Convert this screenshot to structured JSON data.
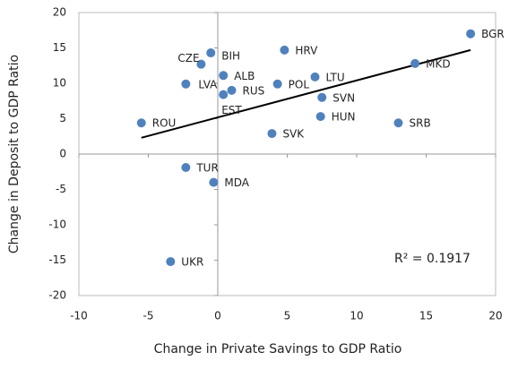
{
  "chart_data": {
    "type": "scatter",
    "xlabel": "Change in Private Savings to GDP Ratio",
    "ylabel": "Change in Deposit to GDP Ratio",
    "annotation": "R² = 0.1917",
    "color": "#4f81bd",
    "labels": [
      "BGR",
      "MKD",
      "HRV",
      "BIH",
      "CZE",
      "ALB",
      "LTU",
      "LVA",
      "POL",
      "RUS",
      "EST",
      "SVN",
      "HUN",
      "SRB",
      "ROU",
      "SVK",
      "TUR",
      "MDA",
      "UKR"
    ],
    "x": [
      18.2,
      14.2,
      4.8,
      -0.5,
      -1.2,
      0.4,
      7.0,
      -2.3,
      4.3,
      1.0,
      0.4,
      7.5,
      7.4,
      13.0,
      -5.5,
      3.9,
      -2.3,
      -0.3,
      -3.4
    ],
    "y": [
      17.0,
      12.8,
      14.7,
      14.3,
      12.7,
      11.1,
      10.9,
      9.9,
      9.9,
      9.0,
      8.4,
      8.0,
      5.3,
      4.4,
      4.4,
      2.9,
      -1.9,
      -4.0,
      -15.2
    ],
    "trendline": {
      "x": [
        -5.5,
        18.2
      ],
      "y": [
        2.3,
        14.7
      ],
      "color": "#000000"
    },
    "xlim": [
      -10,
      20
    ],
    "ylim": [
      -20,
      20
    ],
    "xticks": [
      -10,
      -5,
      0,
      5,
      10,
      15,
      20
    ],
    "yticks": [
      -20,
      -15,
      -10,
      -5,
      0,
      5,
      10,
      15,
      20
    ]
  }
}
